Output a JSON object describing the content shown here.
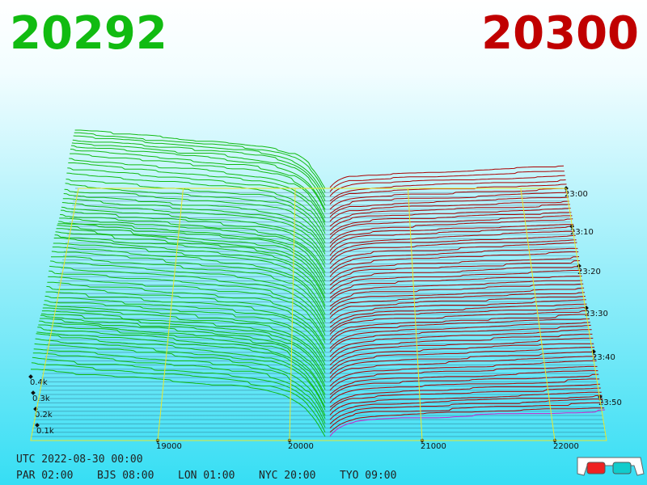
{
  "header": {
    "bid_price": "20292",
    "ask_price": "20300"
  },
  "price_axis": [
    "19000",
    "20000",
    "21000",
    "22000"
  ],
  "time_axis": [
    "23:00",
    "23:10",
    "23:20",
    "23:30",
    "23:40",
    "23:50"
  ],
  "depth_axis": [
    "0.1k",
    "0.2k",
    "0.3k",
    "0.4k"
  ],
  "footer": {
    "utc": "UTC 2022-08-30 00:00",
    "zones": [
      "PAR 02:00",
      "BJS 08:00",
      "LON 01:00",
      "NYC 20:00",
      "TYO 09:00"
    ]
  }
}
